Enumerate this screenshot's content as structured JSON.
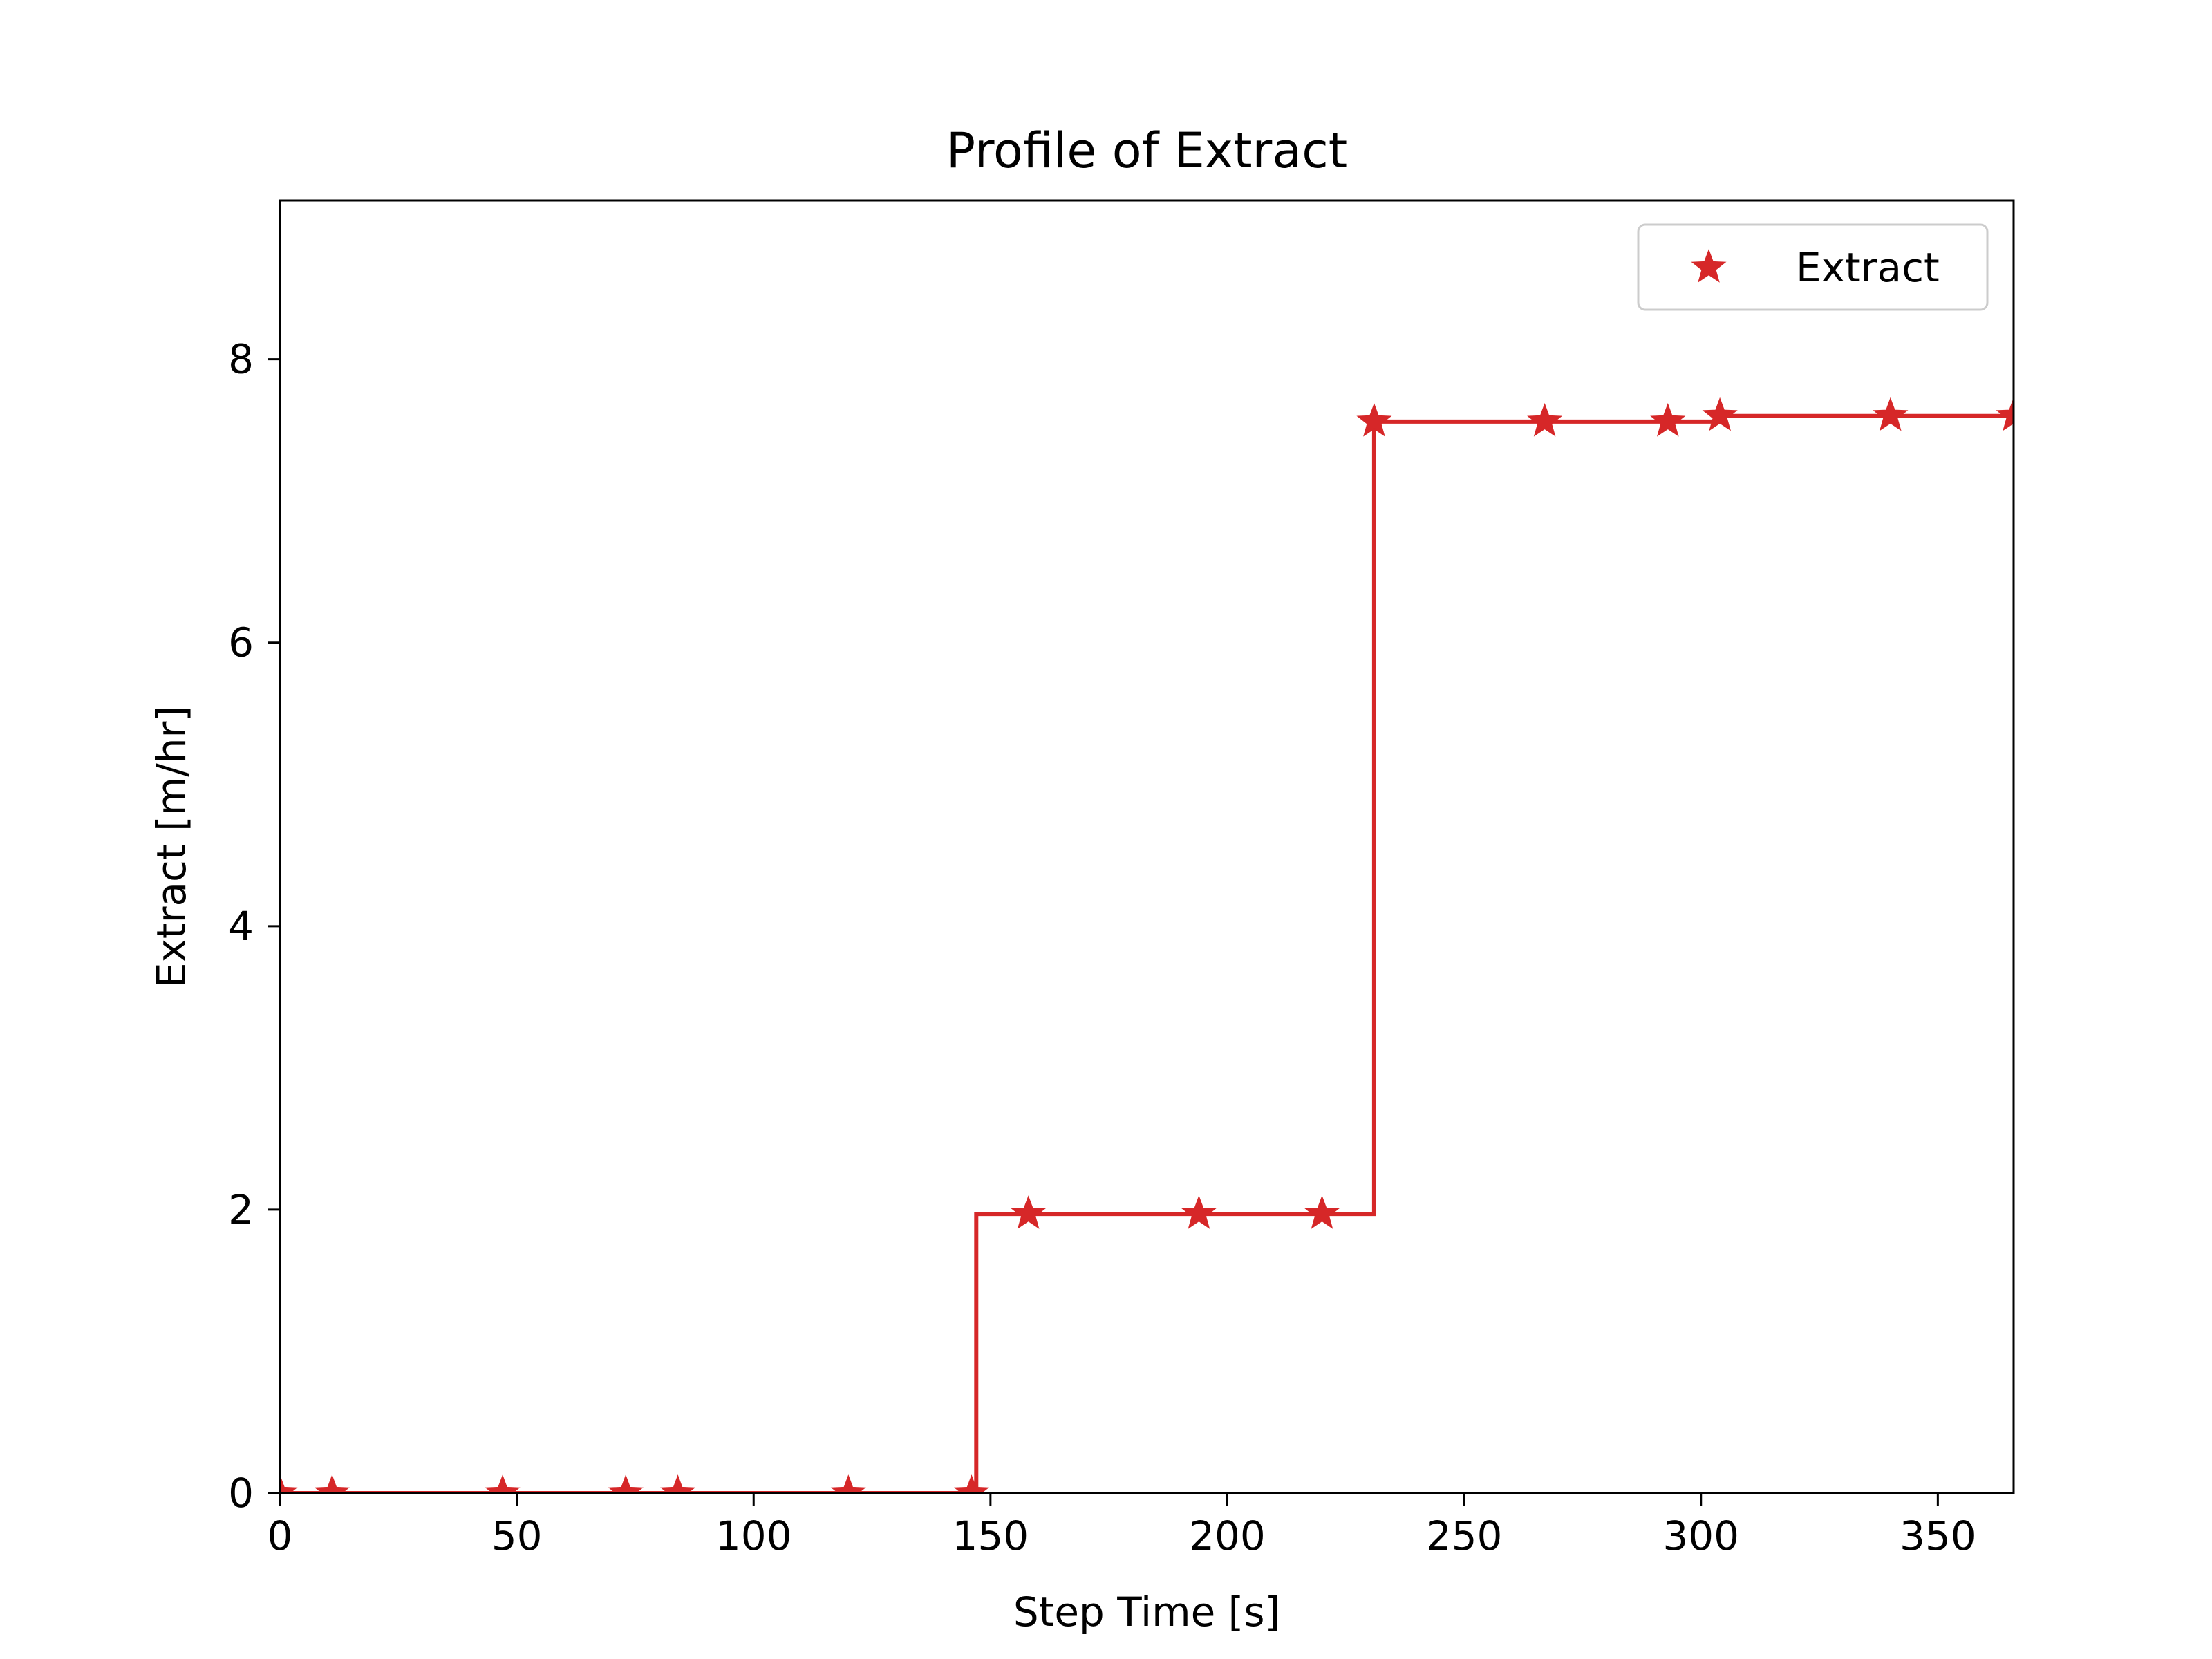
{
  "chart_data": {
    "type": "line",
    "title": "Profile of Extract",
    "xlabel": "Step Time [s]",
    "ylabel": "Extract [m/hr]",
    "xlim": [
      0,
      366
    ],
    "ylim": [
      0,
      9.12
    ],
    "xticks": [
      0,
      50,
      100,
      150,
      200,
      250,
      300,
      350
    ],
    "yticks": [
      0,
      2,
      4,
      6,
      8
    ],
    "grid": false,
    "legend_position": "top-right",
    "color": "#d62728",
    "series": [
      {
        "name": "Extract",
        "drawstyle": "steps-post",
        "marker": "star",
        "x": [
          0,
          11,
          47,
          73,
          84,
          120,
          146,
          147,
          158,
          194,
          220,
          231,
          267,
          293,
          304,
          340,
          366
        ],
        "y": [
          0.0,
          0.0,
          0.0,
          0.0,
          0.0,
          0.0,
          0.0,
          1.97,
          1.97,
          1.97,
          1.97,
          7.56,
          7.56,
          7.56,
          7.6,
          7.6,
          7.6
        ]
      }
    ],
    "markers": {
      "x": [
        0,
        11,
        47,
        73,
        84,
        120,
        146,
        158,
        194,
        220,
        231,
        267,
        293,
        304,
        340,
        366
      ],
      "y": [
        0.0,
        0.0,
        0.0,
        0.0,
        0.0,
        0.0,
        0.0,
        1.97,
        1.97,
        1.97,
        7.56,
        7.56,
        7.56,
        7.6,
        7.6,
        7.6
      ]
    }
  }
}
